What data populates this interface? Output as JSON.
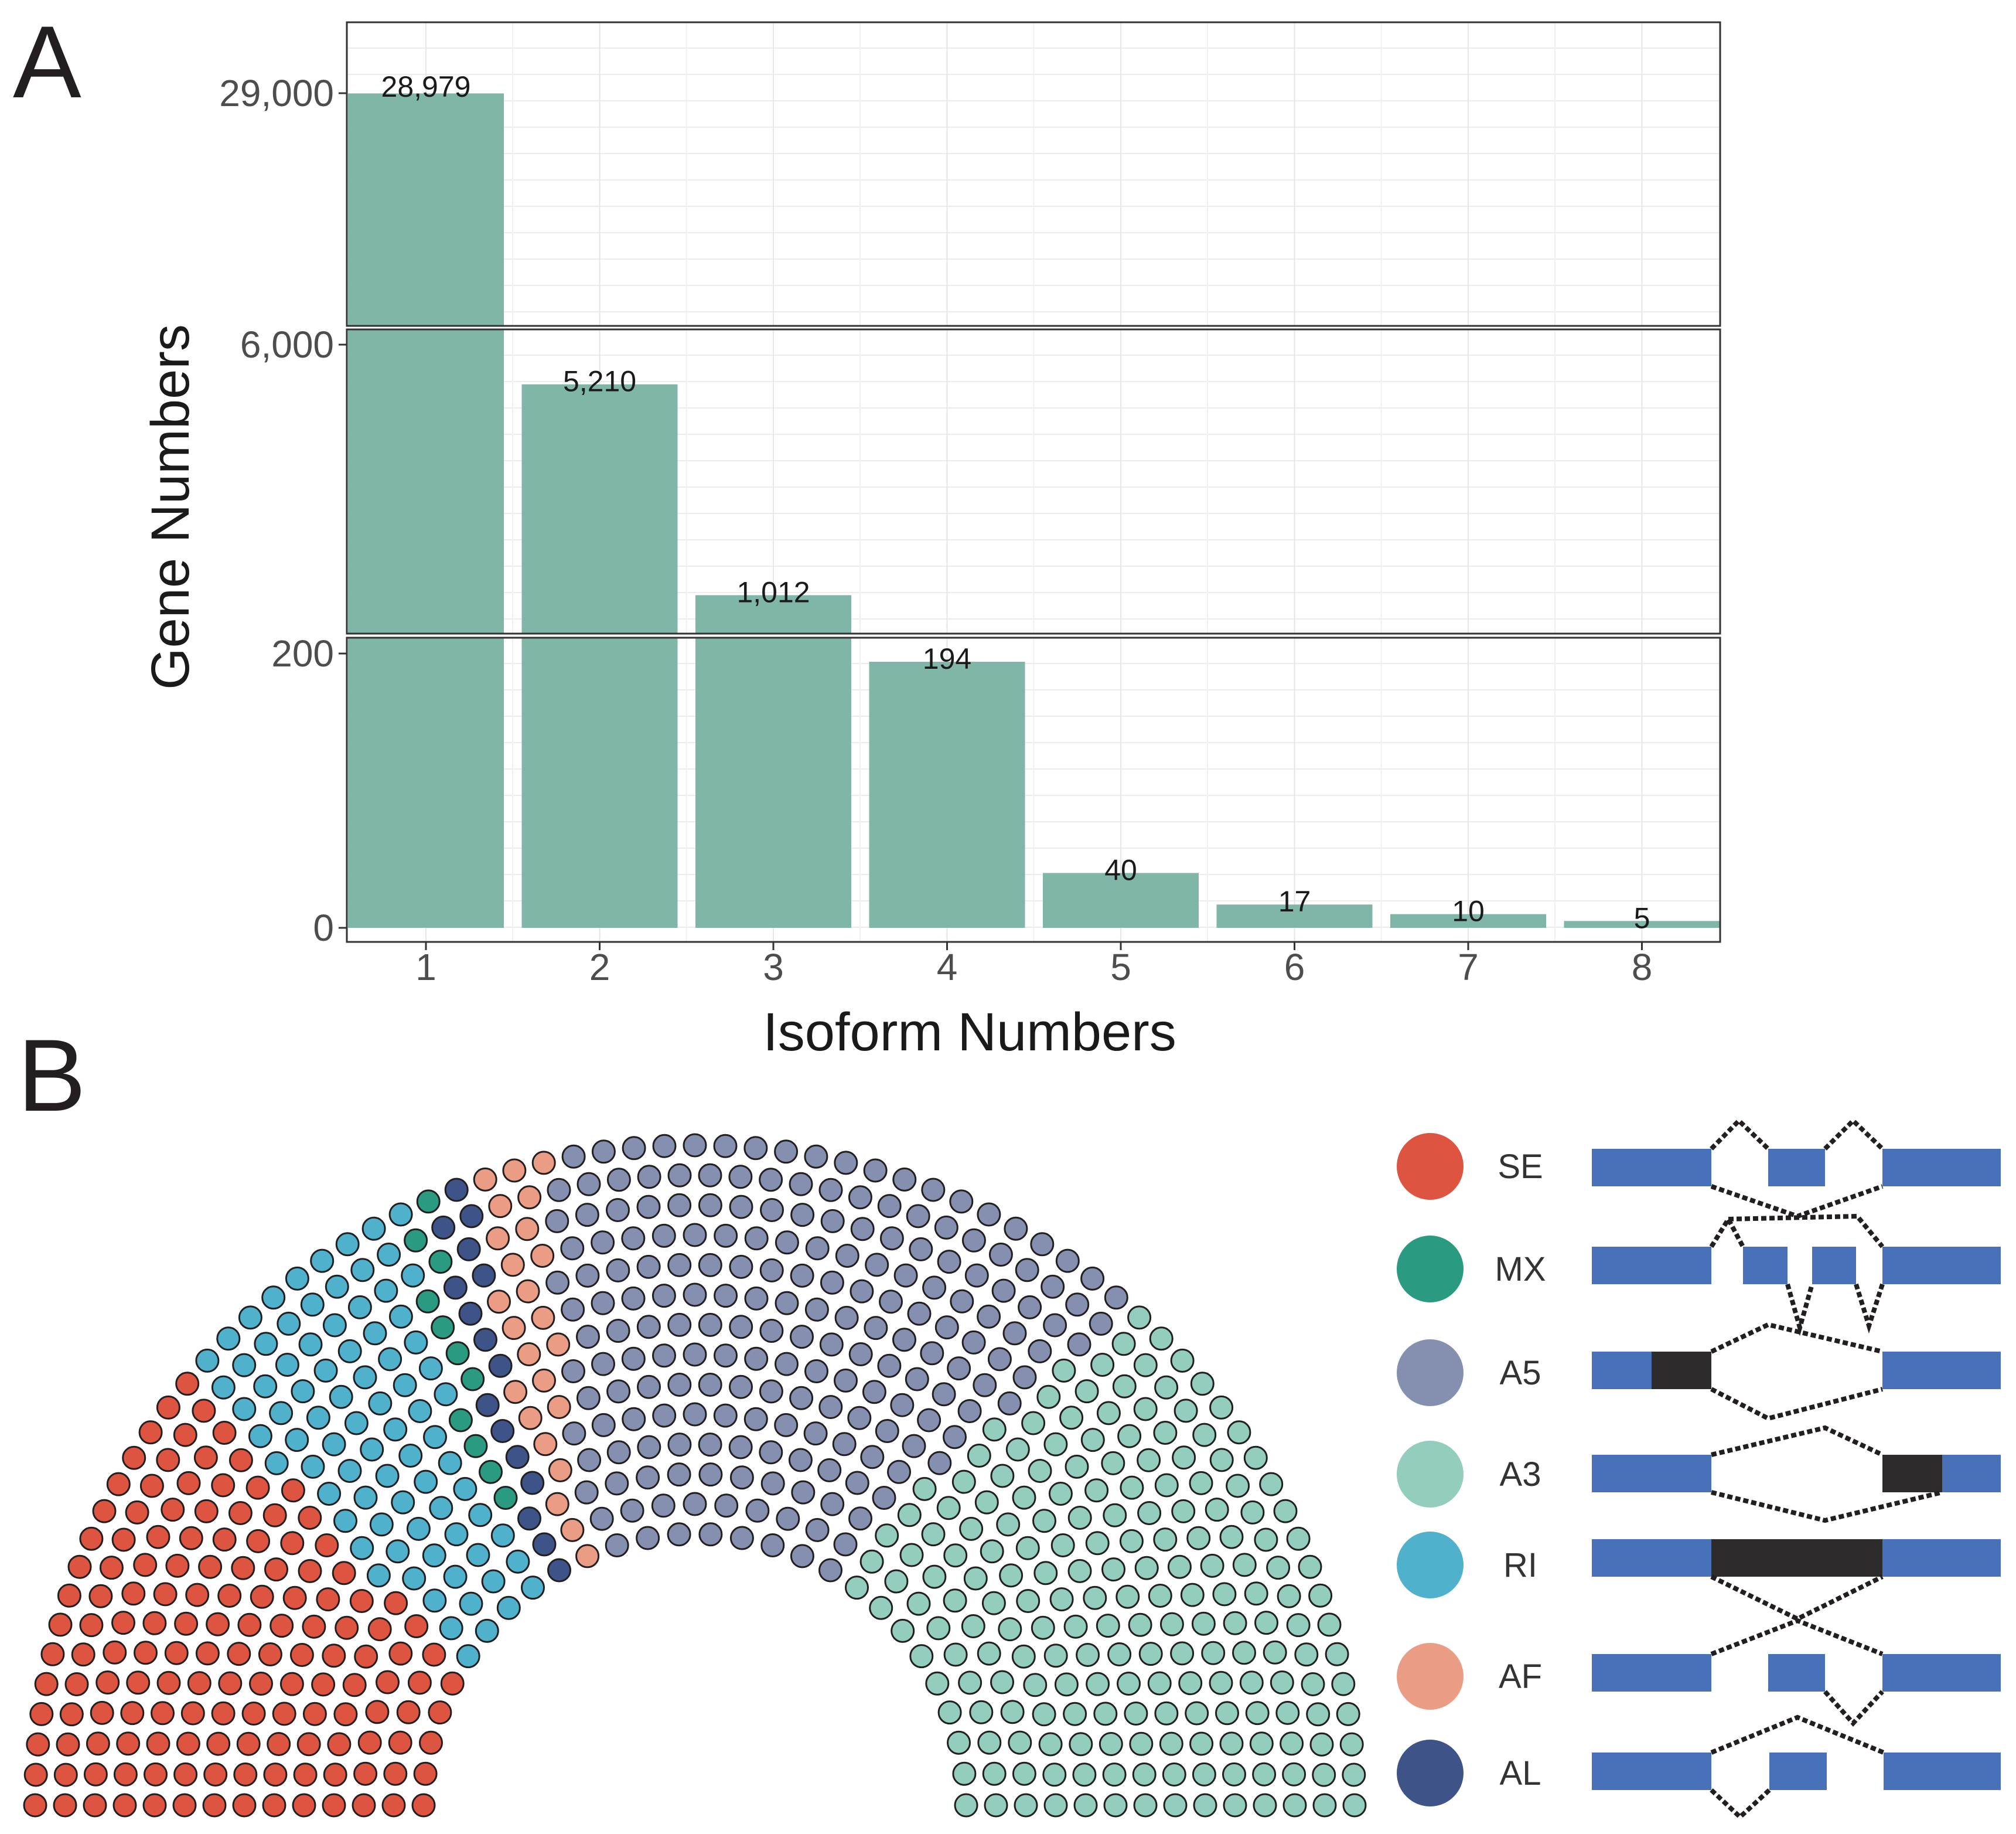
{
  "panels": {
    "a": "A",
    "b": "B"
  },
  "chart_data": [
    {
      "type": "bar",
      "title": "",
      "xlabel": "Isoform Numbers",
      "ylabel": "Gene Numbers",
      "categories": [
        "1",
        "2",
        "3",
        "4",
        "5",
        "6",
        "7",
        "8"
      ],
      "values": [
        28979,
        5210,
        1012,
        194,
        40,
        17,
        10,
        5
      ],
      "value_labels": [
        "28,979",
        "5,210",
        "1,012",
        "194",
        "40",
        "17",
        "10",
        "5"
      ],
      "bar_color": "#7fb6a8",
      "grid": true,
      "y_axis_breaks": [
        {
          "range": [
            6000,
            29000
          ],
          "ticks": [
            29000
          ],
          "tick_labels": [
            "29,000"
          ]
        },
        {
          "range": [
            200,
            6000
          ],
          "ticks": [
            6000
          ],
          "tick_labels": [
            "6,000"
          ]
        },
        {
          "range": [
            0,
            200
          ],
          "ticks": [
            0,
            200
          ],
          "tick_labels": [
            "0",
            "200"
          ]
        }
      ]
    },
    {
      "type": "waffle-arc",
      "title": "",
      "series": [
        {
          "name": "SE",
          "color": "#dd5541"
        },
        {
          "name": "RI",
          "color": "#4fb1cb"
        },
        {
          "name": "MX",
          "color": "#2a9a80"
        },
        {
          "name": "AL",
          "color": "#3e5387"
        },
        {
          "name": "AF",
          "color": "#eb9c85"
        },
        {
          "name": "A5",
          "color": "#858fb0"
        },
        {
          "name": "A3",
          "color": "#93cdbd"
        }
      ],
      "legend_order": [
        "SE",
        "MX",
        "A5",
        "A3",
        "RI",
        "AF",
        "AL"
      ],
      "legend_position": "right"
    }
  ],
  "diagram_colors": {
    "exon": "#4971b8",
    "alt_region": "#2d2b2b",
    "connector": "#231f20"
  }
}
